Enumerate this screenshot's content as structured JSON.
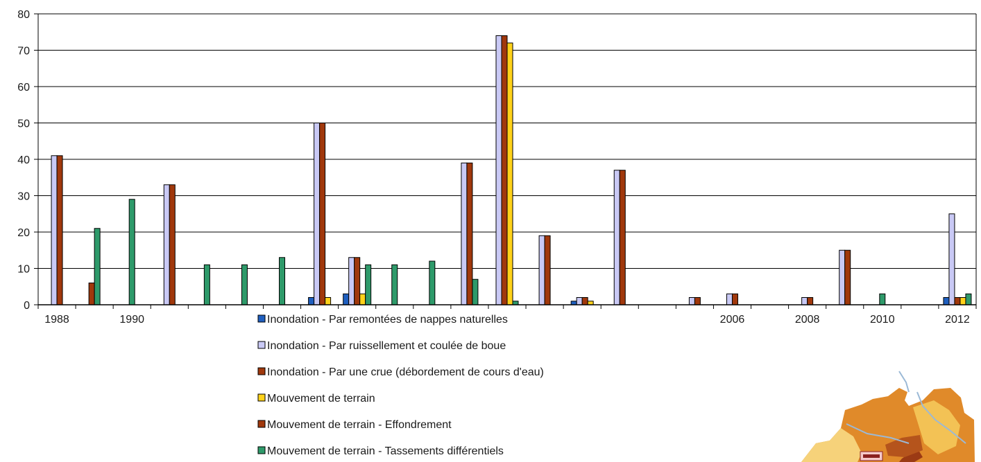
{
  "chart_data": {
    "type": "bar",
    "title": "",
    "xlabel": "",
    "ylabel": "",
    "ylim": [
      0,
      80
    ],
    "yticks": [
      0,
      10,
      20,
      30,
      40,
      50,
      60,
      70,
      80
    ],
    "grid": true,
    "legend_position": "bottom-center",
    "x_tick_labels": [
      {
        "category": 0,
        "label": "1988"
      },
      {
        "category": 2,
        "label": "1990"
      },
      {
        "category": 18,
        "label": "2006"
      },
      {
        "category": 20,
        "label": "2008"
      },
      {
        "category": 22,
        "label": "2010"
      },
      {
        "category": 24,
        "label": "2012"
      }
    ],
    "categories": [
      "1988",
      "1989",
      "1990",
      "1991",
      "1992",
      "1993",
      "1994",
      "1995",
      "1996",
      "1997",
      "1998",
      "1999",
      "2000",
      "2001",
      "2002",
      "2003",
      "2004",
      "2005",
      "2006",
      "2007",
      "2008",
      "2009",
      "2010",
      "2011",
      "2012"
    ],
    "series": [
      {
        "name": "Inondation - Par remontées de nappes naturelles",
        "color": "#1f5fbf",
        "values": [
          0,
          0,
          0,
          0,
          0,
          0,
          0,
          2,
          3,
          0,
          0,
          0,
          0,
          0,
          1,
          0,
          0,
          0,
          0,
          0,
          0,
          0,
          0,
          0,
          2
        ]
      },
      {
        "name": "Inondation - Par ruissellement et coulée de boue",
        "color": "#c9c9f5",
        "values": [
          41,
          0,
          0,
          33,
          0,
          0,
          0,
          50,
          13,
          0,
          0,
          39,
          74,
          19,
          2,
          37,
          0,
          2,
          3,
          0,
          2,
          15,
          0,
          0,
          25
        ]
      },
      {
        "name": "Inondation  - Par une crue (débordement  de cours d'eau)",
        "color": "#a0380c",
        "values": [
          41,
          0,
          0,
          33,
          0,
          0,
          0,
          50,
          13,
          0,
          0,
          39,
          74,
          19,
          2,
          37,
          0,
          2,
          3,
          0,
          2,
          15,
          0,
          0,
          2
        ]
      },
      {
        "name": "Mouvement de terrain",
        "color": "#ffd21a",
        "values": [
          0,
          0,
          0,
          0,
          0,
          0,
          0,
          2,
          3,
          0,
          0,
          0,
          72,
          0,
          1,
          0,
          0,
          0,
          0,
          0,
          0,
          0,
          0,
          0,
          2
        ]
      },
      {
        "name": "Mouvement de terrain - Effondrement",
        "color": "#a0380c",
        "values": [
          0,
          6,
          0,
          0,
          0,
          0,
          0,
          0,
          0,
          0,
          0,
          0,
          0,
          0,
          0,
          0,
          0,
          0,
          0,
          0,
          0,
          0,
          0,
          0,
          0
        ]
      },
      {
        "name": "Mouvement de terrain - Tassements différentiels",
        "color": "#2e9a6a",
        "values": [
          0,
          21,
          29,
          0,
          11,
          11,
          13,
          0,
          11,
          11,
          12,
          7,
          1,
          0,
          0,
          0,
          0,
          0,
          0,
          0,
          0,
          0,
          3,
          0,
          3
        ]
      }
    ]
  }
}
